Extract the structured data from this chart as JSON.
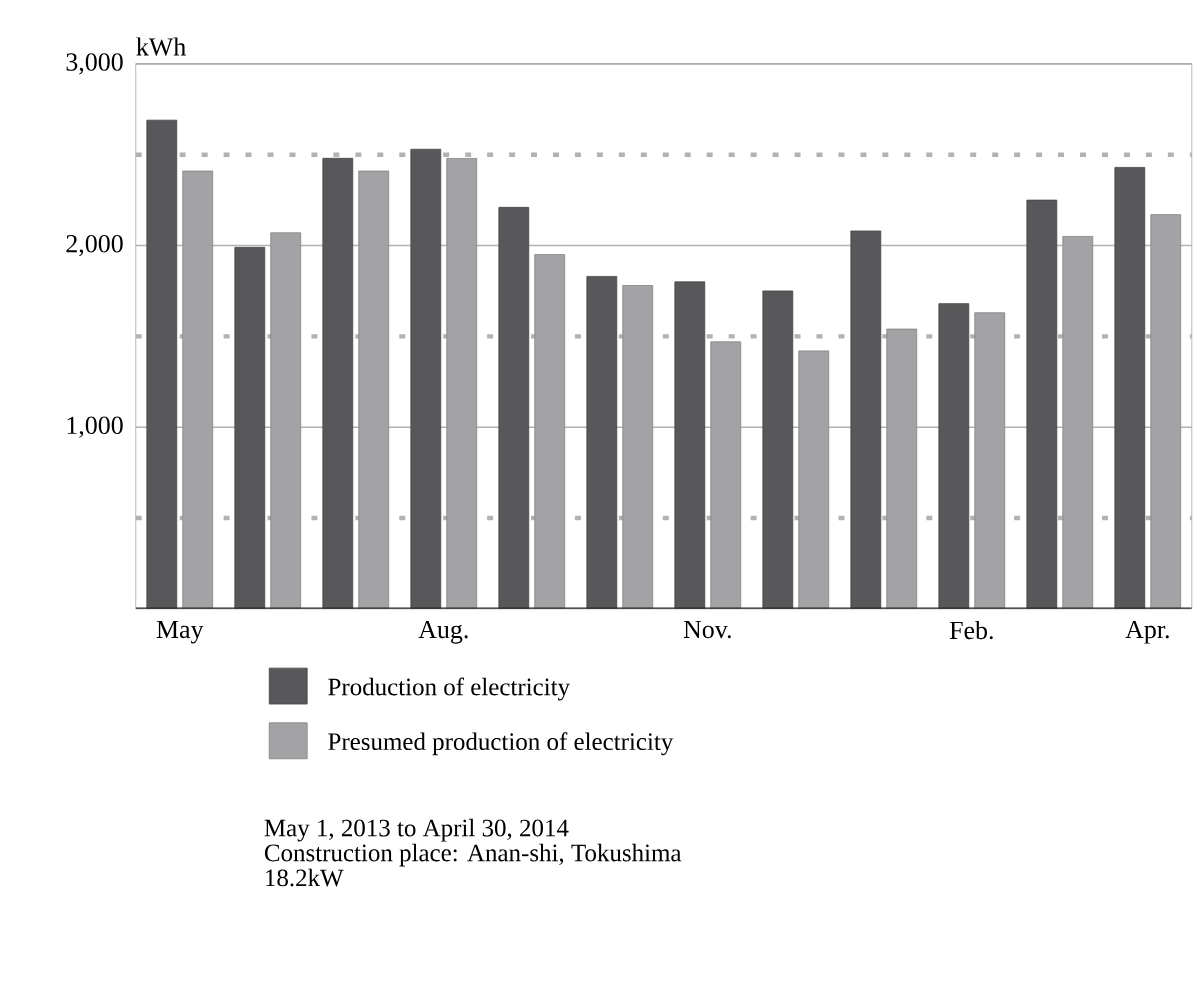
{
  "chart_data": {
    "type": "bar",
    "ylabel": "kWh",
    "categories": [
      "May",
      null,
      null,
      "Aug.",
      null,
      null,
      "Nov.",
      null,
      null,
      "Feb.",
      null,
      "Apr."
    ],
    "series": [
      {
        "name": "Production of electricity",
        "color": "#58585a",
        "values": [
          2690,
          1990,
          2480,
          2530,
          2210,
          1830,
          1800,
          1750,
          2080,
          1680,
          2250,
          2430
        ]
      },
      {
        "name": "Presumed production of electricity",
        "color": "#a3a3a5",
        "values": [
          2410,
          2070,
          2410,
          2480,
          1950,
          1780,
          1470,
          1420,
          1540,
          1630,
          2050,
          2170
        ]
      }
    ],
    "ylim": [
      0,
      3000
    ],
    "yticks": [
      {
        "value": 500,
        "label": null
      },
      {
        "value": 1000,
        "label": "1,000"
      },
      {
        "value": 1500,
        "label": null
      },
      {
        "value": 2000,
        "label": "2,000"
      },
      {
        "value": 2500,
        "label": null
      },
      {
        "value": 3000,
        "label": "3,000"
      }
    ],
    "grid": "y",
    "legend": "bottom",
    "annotations": [
      "May 1, 2013 to April 30, 2014",
      "Construction place: Anan-shi, Tokushima",
      "18.2kW"
    ]
  }
}
